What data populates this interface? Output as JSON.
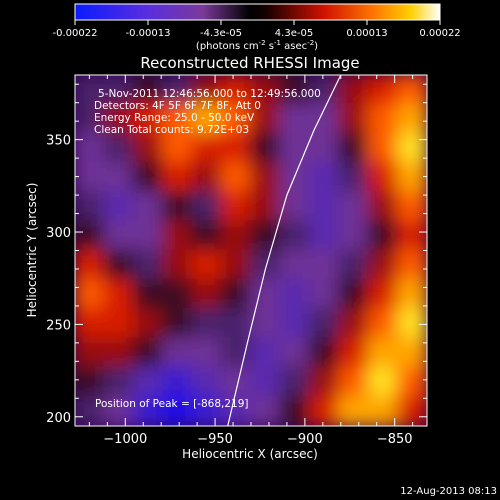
{
  "colorbar": {
    "tick_labels": [
      "-0.00022",
      "-0.00013",
      "-4.3e-05",
      "4.3e-05",
      "0.00013",
      "0.00022"
    ],
    "units_label": "(photons cm",
    "units_sup1": "-2",
    "units_mid": " s",
    "units_sup2": "-1",
    "units_end": " asec",
    "units_sup3": "-2",
    "units_close": ")",
    "colormap": "blue-purple-red-yellow-white"
  },
  "plot": {
    "title": "Reconstructed RHESSI Image",
    "info_lines": [
      "5-Nov-2011 12:46:56.000 to 12:49:56.000",
      "Detectors: 4F 5F 6F 7F 8F, Att 0",
      "Energy Range: 25.0 - 50.0 keV",
      "Clean     Total counts: 9.72E+03"
    ],
    "peak_label": "Position of Peak = [-868,219]",
    "footer_date": "12-Aug-2013 08:13"
  },
  "chart_data": {
    "type": "heatmap",
    "title": "Reconstructed RHESSI Image",
    "xlabel": "Heliocentric X (arcsec)",
    "ylabel": "Heliocentric Y (arcsec)",
    "xlim": [
      -1028,
      -832
    ],
    "ylim": [
      195,
      385
    ],
    "x_ticks": [
      -1000,
      -950,
      -900,
      -850
    ],
    "x_tick_labels": [
      "−1000",
      "−950",
      "−900",
      "−850"
    ],
    "y_ticks": [
      200,
      250,
      300,
      350
    ],
    "y_tick_labels": [
      "200",
      "250",
      "300",
      "350"
    ],
    "color_range": [
      -0.00022,
      0.00022
    ],
    "peak_position": [
      -868,
      219
    ],
    "limb_line": [
      [
        -943,
        195
      ],
      [
        -932,
        240
      ],
      [
        -922,
        280
      ],
      [
        -910,
        320
      ],
      [
        -895,
        355
      ],
      [
        -880,
        385
      ]
    ],
    "intensity_grid": [
      [
        -1,
        -1,
        0,
        -1,
        1,
        2,
        1,
        0,
        -1,
        1,
        2,
        3
      ],
      [
        -1,
        1,
        2,
        3,
        4,
        3,
        1,
        -2,
        -2,
        1,
        3,
        4
      ],
      [
        -2,
        -1,
        1,
        3,
        2,
        2,
        0,
        -2,
        -2,
        0,
        3,
        5
      ],
      [
        -2,
        -2,
        0,
        2,
        1,
        3,
        1,
        -2,
        -3,
        -1,
        2,
        4
      ],
      [
        -1,
        -3,
        -2,
        0,
        -1,
        2,
        1,
        -2,
        -3,
        -2,
        1,
        3
      ],
      [
        0,
        -2,
        -2,
        1,
        0,
        1,
        0,
        -1,
        -3,
        -2,
        0,
        2
      ],
      [
        2,
        0,
        -1,
        1,
        2,
        1,
        -1,
        -2,
        -2,
        -1,
        1,
        3
      ],
      [
        3,
        2,
        0,
        0,
        1,
        0,
        -2,
        -3,
        -2,
        0,
        2,
        4
      ],
      [
        2,
        2,
        1,
        0,
        -1,
        -1,
        -2,
        -3,
        -1,
        1,
        3,
        5
      ],
      [
        1,
        1,
        0,
        -2,
        -2,
        -1,
        -3,
        -2,
        0,
        2,
        4,
        4
      ],
      [
        0,
        -1,
        -3,
        -4,
        -3,
        -2,
        -3,
        -1,
        1,
        3,
        5,
        3
      ],
      [
        -1,
        -2,
        -4,
        -5,
        -4,
        -3,
        -2,
        0,
        2,
        4,
        4,
        2
      ]
    ]
  }
}
